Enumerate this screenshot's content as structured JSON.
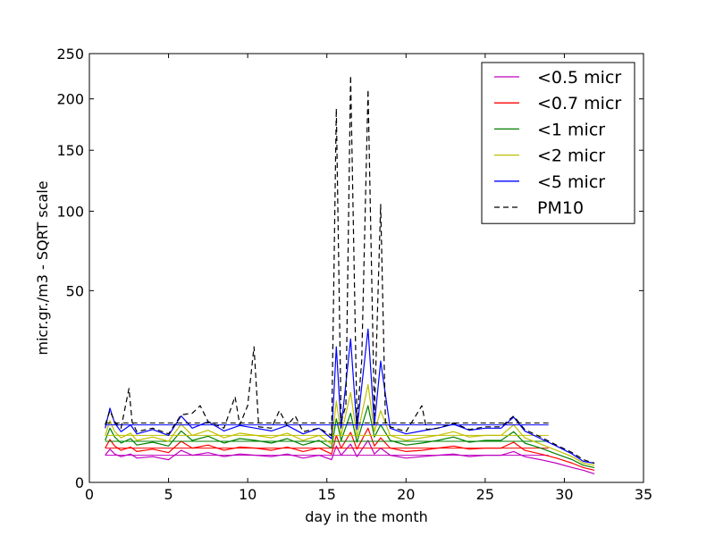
{
  "chart_data": {
    "type": "line",
    "title": "",
    "xlabel": "day in the month",
    "ylabel": "micr.gr./m3 - SQRT scale",
    "y_scale": "sqrt",
    "xlim": [
      0,
      35
    ],
    "ylim": [
      0,
      250
    ],
    "x_ticks": [
      0,
      5,
      10,
      15,
      20,
      25,
      30,
      35
    ],
    "y_ticks": [
      0,
      50,
      100,
      150,
      200,
      250
    ],
    "grid": false,
    "legend_position": "top-right",
    "series": [
      {
        "name": "<0.5 micr",
        "color": "#bf00bf",
        "style": "solid",
        "mean_line": {
          "x": [
            1,
            29
          ],
          "y": 1.0
        },
        "points": [
          [
            1.0,
            1.0
          ],
          [
            1.3,
            1.5
          ],
          [
            1.6,
            1.1
          ],
          [
            2.0,
            0.9
          ],
          [
            2.6,
            1.1
          ],
          [
            3.0,
            0.8
          ],
          [
            4.0,
            0.9
          ],
          [
            5.0,
            0.7
          ],
          [
            5.8,
            1.4
          ],
          [
            6.5,
            1.0
          ],
          [
            7.5,
            1.2
          ],
          [
            8.5,
            0.9
          ],
          [
            9.5,
            1.1
          ],
          [
            10.5,
            1.0
          ],
          [
            11.5,
            0.9
          ],
          [
            12.5,
            1.1
          ],
          [
            13.5,
            0.8
          ],
          [
            14.5,
            1.0
          ],
          [
            15.3,
            0.7
          ],
          [
            15.6,
            1.8
          ],
          [
            15.9,
            1.0
          ],
          [
            16.5,
            2.0
          ],
          [
            16.9,
            0.9
          ],
          [
            17.6,
            2.4
          ],
          [
            18.0,
            1.1
          ],
          [
            18.4,
            1.6
          ],
          [
            19.0,
            1.0
          ],
          [
            20.0,
            0.8
          ],
          [
            21.0,
            0.9
          ],
          [
            22.0,
            1.0
          ],
          [
            23.0,
            1.1
          ],
          [
            24.0,
            0.9
          ],
          [
            25.0,
            1.0
          ],
          [
            26.0,
            1.0
          ],
          [
            26.8,
            1.3
          ],
          [
            27.5,
            0.9
          ],
          [
            28.5,
            0.7
          ],
          [
            29.5,
            0.5
          ],
          [
            30.5,
            0.3
          ],
          [
            31.2,
            0.2
          ],
          [
            31.9,
            0.1
          ]
        ]
      },
      {
        "name": "<0.7 micr",
        "color": "#ff0000",
        "style": "solid",
        "mean_line": {
          "x": [
            1,
            29
          ],
          "y": 1.6
        },
        "points": [
          [
            1.0,
            1.6
          ],
          [
            1.3,
            2.5
          ],
          [
            1.6,
            1.8
          ],
          [
            2.0,
            1.4
          ],
          [
            2.6,
            1.7
          ],
          [
            3.0,
            1.3
          ],
          [
            4.0,
            1.5
          ],
          [
            5.0,
            1.2
          ],
          [
            5.8,
            2.3
          ],
          [
            6.5,
            1.6
          ],
          [
            7.5,
            1.9
          ],
          [
            8.5,
            1.4
          ],
          [
            9.5,
            1.7
          ],
          [
            10.5,
            1.6
          ],
          [
            11.5,
            1.4
          ],
          [
            12.5,
            1.7
          ],
          [
            13.5,
            1.3
          ],
          [
            14.5,
            1.6
          ],
          [
            15.3,
            1.1
          ],
          [
            15.6,
            3.0
          ],
          [
            15.9,
            1.6
          ],
          [
            16.5,
            3.4
          ],
          [
            16.9,
            1.5
          ],
          [
            17.6,
            4.0
          ],
          [
            18.0,
            1.8
          ],
          [
            18.4,
            2.7
          ],
          [
            19.0,
            1.6
          ],
          [
            20.0,
            1.3
          ],
          [
            21.0,
            1.4
          ],
          [
            22.0,
            1.6
          ],
          [
            23.0,
            1.8
          ],
          [
            24.0,
            1.5
          ],
          [
            25.0,
            1.6
          ],
          [
            26.0,
            1.6
          ],
          [
            26.8,
            2.2
          ],
          [
            27.5,
            1.4
          ],
          [
            28.5,
            1.1
          ],
          [
            29.5,
            0.8
          ],
          [
            30.5,
            0.5
          ],
          [
            31.2,
            0.3
          ],
          [
            31.9,
            0.2
          ]
        ]
      },
      {
        "name": "<1 micr",
        "color": "#008000",
        "style": "solid",
        "mean_line": {
          "x": [
            1,
            29
          ],
          "y": 2.3
        },
        "points": [
          [
            1.0,
            2.4
          ],
          [
            1.3,
            4.0
          ],
          [
            1.6,
            2.8
          ],
          [
            2.0,
            2.1
          ],
          [
            2.6,
            2.6
          ],
          [
            3.0,
            1.9
          ],
          [
            4.0,
            2.2
          ],
          [
            5.0,
            1.8
          ],
          [
            5.8,
            3.6
          ],
          [
            6.5,
            2.4
          ],
          [
            7.5,
            2.9
          ],
          [
            8.5,
            2.1
          ],
          [
            9.5,
            2.6
          ],
          [
            10.5,
            2.4
          ],
          [
            11.5,
            2.1
          ],
          [
            12.5,
            2.6
          ],
          [
            13.5,
            1.9
          ],
          [
            14.5,
            2.4
          ],
          [
            15.3,
            1.6
          ],
          [
            15.6,
            5.5
          ],
          [
            15.9,
            2.4
          ],
          [
            16.5,
            6.5
          ],
          [
            16.9,
            2.2
          ],
          [
            17.6,
            8.0
          ],
          [
            18.0,
            2.8
          ],
          [
            18.4,
            4.5
          ],
          [
            19.0,
            2.4
          ],
          [
            20.0,
            1.9
          ],
          [
            21.0,
            2.1
          ],
          [
            22.0,
            2.4
          ],
          [
            23.0,
            2.8
          ],
          [
            24.0,
            2.2
          ],
          [
            25.0,
            2.4
          ],
          [
            26.0,
            2.4
          ],
          [
            26.8,
            3.5
          ],
          [
            27.5,
            2.1
          ],
          [
            28.5,
            1.6
          ],
          [
            29.5,
            1.1
          ],
          [
            30.5,
            0.7
          ],
          [
            31.2,
            0.4
          ],
          [
            31.9,
            0.3
          ]
        ]
      },
      {
        "name": "<2 micr",
        "color": "#bfbf00",
        "style": "solid",
        "mean_line": {
          "x": [
            1,
            29
          ],
          "y": 3.0
        },
        "points": [
          [
            1.0,
            3.0
          ],
          [
            1.3,
            5.2
          ],
          [
            1.6,
            3.5
          ],
          [
            2.0,
            2.7
          ],
          [
            2.6,
            3.3
          ],
          [
            3.0,
            2.4
          ],
          [
            4.0,
            2.8
          ],
          [
            5.0,
            2.3
          ],
          [
            5.8,
            4.6
          ],
          [
            6.5,
            3.0
          ],
          [
            7.5,
            3.7
          ],
          [
            8.5,
            2.7
          ],
          [
            9.5,
            3.3
          ],
          [
            10.5,
            3.0
          ],
          [
            11.5,
            2.7
          ],
          [
            12.5,
            3.3
          ],
          [
            13.5,
            2.4
          ],
          [
            14.5,
            3.0
          ],
          [
            15.3,
            2.0
          ],
          [
            15.6,
            9.0
          ],
          [
            15.9,
            3.0
          ],
          [
            16.5,
            11.0
          ],
          [
            16.9,
            2.8
          ],
          [
            17.6,
            13.0
          ],
          [
            18.0,
            3.5
          ],
          [
            18.4,
            7.0
          ],
          [
            19.0,
            3.0
          ],
          [
            20.0,
            2.4
          ],
          [
            21.0,
            2.7
          ],
          [
            22.0,
            3.0
          ],
          [
            23.0,
            3.5
          ],
          [
            24.0,
            2.8
          ],
          [
            25.0,
            3.0
          ],
          [
            26.0,
            3.0
          ],
          [
            26.8,
            4.5
          ],
          [
            27.5,
            2.7
          ],
          [
            28.5,
            2.0
          ],
          [
            29.5,
            1.4
          ],
          [
            30.5,
            0.9
          ],
          [
            31.2,
            0.5
          ],
          [
            31.9,
            0.4
          ]
        ]
      },
      {
        "name": "<5 micr",
        "color": "#0000ff",
        "style": "solid",
        "mean_line": {
          "x": [
            1,
            29
          ],
          "y": 4.5
        },
        "points": [
          [
            1.0,
            4.0
          ],
          [
            1.3,
            7.5
          ],
          [
            1.6,
            4.8
          ],
          [
            2.0,
            3.5
          ],
          [
            2.6,
            4.5
          ],
          [
            3.0,
            3.2
          ],
          [
            4.0,
            3.8
          ],
          [
            5.0,
            3.0
          ],
          [
            5.8,
            6.0
          ],
          [
            6.5,
            4.0
          ],
          [
            7.5,
            5.0
          ],
          [
            8.5,
            3.6
          ],
          [
            9.5,
            4.4
          ],
          [
            10.5,
            4.0
          ],
          [
            11.5,
            3.6
          ],
          [
            12.5,
            4.4
          ],
          [
            13.5,
            3.2
          ],
          [
            14.5,
            4.0
          ],
          [
            15.3,
            2.6
          ],
          [
            15.6,
            25.0
          ],
          [
            15.9,
            4.0
          ],
          [
            16.5,
            28.0
          ],
          [
            16.9,
            3.8
          ],
          [
            17.6,
            32.0
          ],
          [
            18.0,
            4.5
          ],
          [
            18.4,
            20.0
          ],
          [
            19.0,
            4.0
          ],
          [
            20.0,
            3.2
          ],
          [
            21.0,
            3.6
          ],
          [
            22.0,
            4.0
          ],
          [
            23.0,
            4.6
          ],
          [
            24.0,
            3.7
          ],
          [
            25.0,
            4.0
          ],
          [
            26.0,
            4.0
          ],
          [
            26.8,
            5.8
          ],
          [
            27.5,
            3.6
          ],
          [
            28.5,
            2.6
          ],
          [
            29.5,
            1.8
          ],
          [
            30.5,
            1.1
          ],
          [
            31.2,
            0.6
          ],
          [
            31.9,
            0.5
          ]
        ]
      },
      {
        "name": "PM10",
        "color": "#000000",
        "style": "dashed",
        "mean_line": {
          "x": [
            1,
            29
          ],
          "y": 4.8
        },
        "points": [
          [
            1.0,
            4.5
          ],
          [
            1.3,
            7.0
          ],
          [
            1.6,
            5.0
          ],
          [
            2.0,
            4.0
          ],
          [
            2.5,
            12.0
          ],
          [
            2.7,
            5.0
          ],
          [
            3.0,
            3.5
          ],
          [
            4.0,
            4.0
          ],
          [
            5.0,
            3.2
          ],
          [
            5.8,
            6.2
          ],
          [
            6.5,
            6.5
          ],
          [
            7.0,
            8.0
          ],
          [
            7.5,
            5.0
          ],
          [
            8.5,
            4.0
          ],
          [
            9.2,
            10.0
          ],
          [
            9.5,
            4.5
          ],
          [
            10.0,
            8.0
          ],
          [
            10.4,
            25.0
          ],
          [
            10.7,
            4.2
          ],
          [
            11.5,
            4.0
          ],
          [
            12.0,
            7.0
          ],
          [
            12.5,
            4.4
          ],
          [
            13.0,
            6.0
          ],
          [
            13.5,
            3.5
          ],
          [
            14.5,
            4.0
          ],
          [
            15.3,
            3.0
          ],
          [
            15.6,
            190.0
          ],
          [
            15.9,
            5.0
          ],
          [
            16.2,
            8.0
          ],
          [
            16.5,
            225.0
          ],
          [
            16.9,
            5.0
          ],
          [
            17.2,
            20.0
          ],
          [
            17.6,
            210.0
          ],
          [
            18.0,
            6.0
          ],
          [
            18.4,
            105.0
          ],
          [
            18.7,
            5.0
          ],
          [
            19.0,
            4.2
          ],
          [
            20.0,
            3.5
          ],
          [
            21.0,
            8.0
          ],
          [
            21.3,
            3.8
          ],
          [
            22.0,
            4.0
          ],
          [
            23.0,
            4.8
          ],
          [
            24.0,
            3.8
          ],
          [
            25.0,
            4.2
          ],
          [
            26.0,
            4.2
          ],
          [
            26.8,
            6.0
          ],
          [
            27.5,
            3.8
          ],
          [
            28.5,
            2.8
          ],
          [
            29.5,
            1.9
          ],
          [
            30.5,
            1.2
          ],
          [
            31.2,
            0.7
          ],
          [
            31.9,
            0.5
          ]
        ]
      }
    ]
  }
}
